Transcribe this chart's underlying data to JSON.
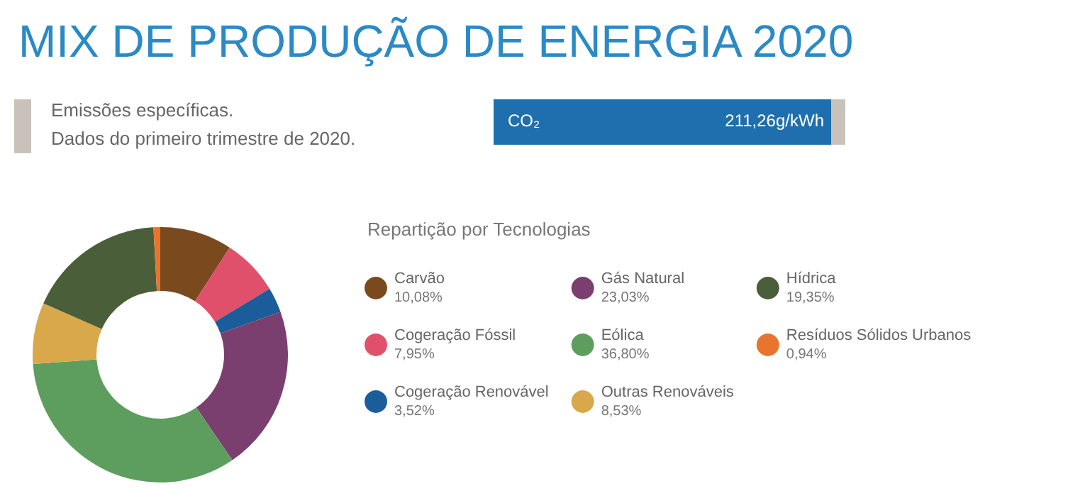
{
  "chart_data": {
    "type": "donut",
    "title": "MIX DE PRODUÇÃO DE ENERGIA 2020",
    "subtitle": "Repartição por Tecnologias",
    "annotations": [
      "Emissões específicas.",
      "Dados do primeiro trimestre de 2020.",
      "CO₂",
      "211,26g/kWh"
    ],
    "categories": [
      "Carvão",
      "Cogeração Fóssil",
      "Cogeração Renovável",
      "Gás Natural",
      "Eólica",
      "Outras Renováveis",
      "Hídrica",
      "Resíduos Sólidos Urbanos"
    ],
    "values": [
      10.08,
      7.95,
      3.52,
      23.03,
      36.8,
      8.53,
      19.35,
      0.94
    ],
    "value_labels": [
      "10,08%",
      "7,95%",
      "3,52%",
      "23,03%",
      "36,80%",
      "8,53%",
      "19,35%",
      "0,94%"
    ],
    "colors": [
      "#7a4a1e",
      "#e0506a",
      "#1a5d9a",
      "#7a3f6e",
      "#5d9e5e",
      "#d9a84a",
      "#4a5e3a",
      "#e8742e"
    ],
    "legend": "right"
  }
}
